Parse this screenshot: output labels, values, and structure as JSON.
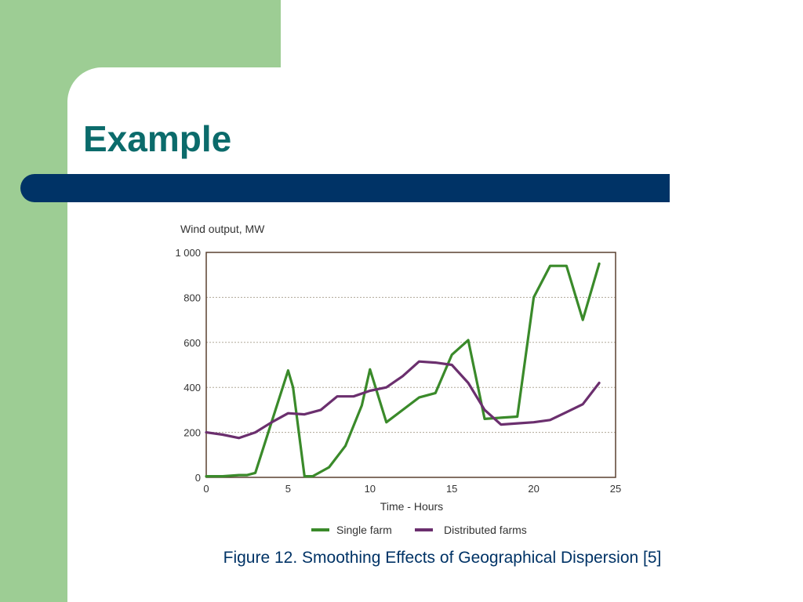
{
  "slide": {
    "title": "Example",
    "caption": "Figure 12. Smoothing Effects of Geographical Dispersion [5]"
  },
  "colors": {
    "sidebar_green": "#9dcd94",
    "title_teal": "#0b6b6b",
    "bar_navy": "#003366",
    "single_farm": "#3a8a2a",
    "distributed_farms": "#6b2f6e"
  },
  "chart_data": {
    "type": "line",
    "title": "",
    "ylabel": "Wind output, MW",
    "xlabel": "Time - Hours",
    "xlim": [
      0,
      25
    ],
    "ylim": [
      0,
      1000
    ],
    "xticks": [
      "0",
      "5",
      "10",
      "15",
      "20",
      "25"
    ],
    "yticks": [
      "0",
      "200",
      "400",
      "600",
      "800",
      "1 000"
    ],
    "grid": true,
    "legend": "bottom",
    "series": [
      {
        "name": "Single farm",
        "x": [
          0,
          1,
          2,
          2.5,
          3,
          5,
          5.3,
          6,
          6.5,
          7.5,
          8.5,
          9.5,
          10,
          11,
          12,
          13,
          14,
          15,
          16,
          17,
          18,
          19,
          20,
          21,
          22,
          23,
          24
        ],
        "y": [
          5,
          5,
          10,
          10,
          20,
          475,
          400,
          5,
          5,
          45,
          140,
          320,
          480,
          245,
          300,
          355,
          375,
          545,
          610,
          260,
          265,
          270,
          800,
          940,
          940,
          700,
          950
        ]
      },
      {
        "name": "Distributed farms",
        "x": [
          0,
          1,
          2,
          3,
          4,
          5,
          6,
          7,
          8,
          9,
          10,
          11,
          12,
          13,
          14,
          15,
          16,
          17,
          18,
          19,
          20,
          21,
          22,
          23,
          24
        ],
        "y": [
          200,
          190,
          175,
          200,
          245,
          285,
          280,
          300,
          360,
          360,
          385,
          400,
          450,
          515,
          510,
          500,
          420,
          300,
          235,
          240,
          245,
          255,
          290,
          325,
          420
        ]
      }
    ]
  }
}
